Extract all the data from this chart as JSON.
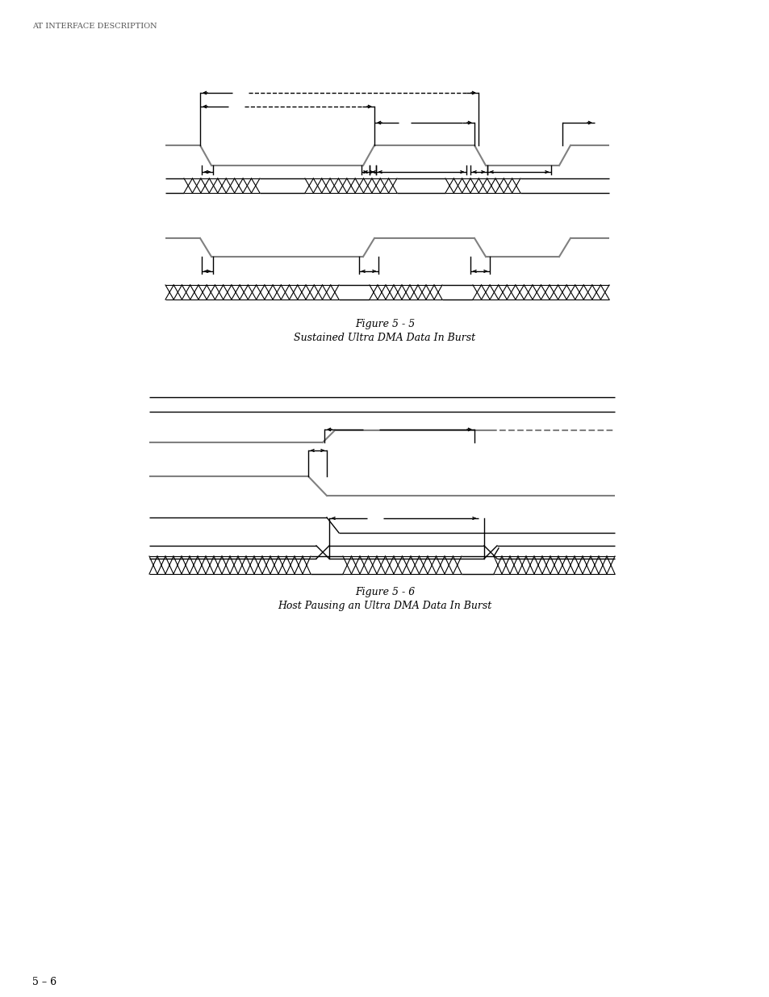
{
  "page_label": "AT INTERFACE DESCRIPTION",
  "page_footer": "5 – 6",
  "fig5_title_line1": "Figure 5 - 5",
  "fig5_title_line2": "Sustained Ultra DMA Data In Burst",
  "fig6_title_line1": "Figure 5 - 6",
  "fig6_title_line2": "Host Pausing an Ultra DMA Data In Burst",
  "line_color": "#000000",
  "signal_color": "#808080",
  "bg_color": "#ffffff"
}
